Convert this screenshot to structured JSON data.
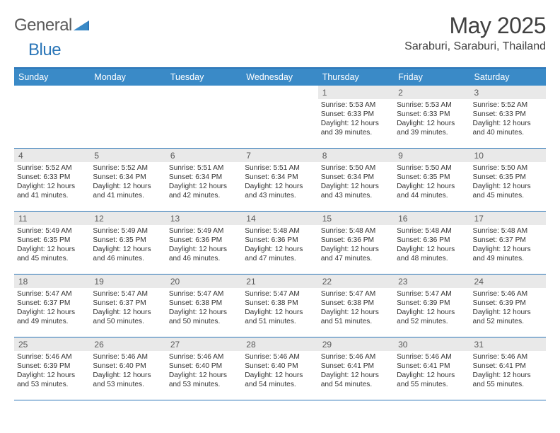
{
  "logo": {
    "word1": "General",
    "word2": "Blue"
  },
  "header": {
    "title": "May 2025",
    "location": "Saraburi, Saraburi, Thailand"
  },
  "colors": {
    "accent": "#2b76b8",
    "header_bar": "#3a8ac7",
    "daynum_bg": "#e9e9e9",
    "text_dark": "#404040",
    "text_body": "#343434"
  },
  "weekdays": [
    "Sunday",
    "Monday",
    "Tuesday",
    "Wednesday",
    "Thursday",
    "Friday",
    "Saturday"
  ],
  "weeks": [
    [
      {
        "n": "",
        "lines": []
      },
      {
        "n": "",
        "lines": []
      },
      {
        "n": "",
        "lines": []
      },
      {
        "n": "",
        "lines": []
      },
      {
        "n": "1",
        "lines": [
          "Sunrise: 5:53 AM",
          "Sunset: 6:33 PM",
          "Daylight: 12 hours",
          "and 39 minutes."
        ]
      },
      {
        "n": "2",
        "lines": [
          "Sunrise: 5:53 AM",
          "Sunset: 6:33 PM",
          "Daylight: 12 hours",
          "and 39 minutes."
        ]
      },
      {
        "n": "3",
        "lines": [
          "Sunrise: 5:52 AM",
          "Sunset: 6:33 PM",
          "Daylight: 12 hours",
          "and 40 minutes."
        ]
      }
    ],
    [
      {
        "n": "4",
        "lines": [
          "Sunrise: 5:52 AM",
          "Sunset: 6:33 PM",
          "Daylight: 12 hours",
          "and 41 minutes."
        ]
      },
      {
        "n": "5",
        "lines": [
          "Sunrise: 5:52 AM",
          "Sunset: 6:34 PM",
          "Daylight: 12 hours",
          "and 41 minutes."
        ]
      },
      {
        "n": "6",
        "lines": [
          "Sunrise: 5:51 AM",
          "Sunset: 6:34 PM",
          "Daylight: 12 hours",
          "and 42 minutes."
        ]
      },
      {
        "n": "7",
        "lines": [
          "Sunrise: 5:51 AM",
          "Sunset: 6:34 PM",
          "Daylight: 12 hours",
          "and 43 minutes."
        ]
      },
      {
        "n": "8",
        "lines": [
          "Sunrise: 5:50 AM",
          "Sunset: 6:34 PM",
          "Daylight: 12 hours",
          "and 43 minutes."
        ]
      },
      {
        "n": "9",
        "lines": [
          "Sunrise: 5:50 AM",
          "Sunset: 6:35 PM",
          "Daylight: 12 hours",
          "and 44 minutes."
        ]
      },
      {
        "n": "10",
        "lines": [
          "Sunrise: 5:50 AM",
          "Sunset: 6:35 PM",
          "Daylight: 12 hours",
          "and 45 minutes."
        ]
      }
    ],
    [
      {
        "n": "11",
        "lines": [
          "Sunrise: 5:49 AM",
          "Sunset: 6:35 PM",
          "Daylight: 12 hours",
          "and 45 minutes."
        ]
      },
      {
        "n": "12",
        "lines": [
          "Sunrise: 5:49 AM",
          "Sunset: 6:35 PM",
          "Daylight: 12 hours",
          "and 46 minutes."
        ]
      },
      {
        "n": "13",
        "lines": [
          "Sunrise: 5:49 AM",
          "Sunset: 6:36 PM",
          "Daylight: 12 hours",
          "and 46 minutes."
        ]
      },
      {
        "n": "14",
        "lines": [
          "Sunrise: 5:48 AM",
          "Sunset: 6:36 PM",
          "Daylight: 12 hours",
          "and 47 minutes."
        ]
      },
      {
        "n": "15",
        "lines": [
          "Sunrise: 5:48 AM",
          "Sunset: 6:36 PM",
          "Daylight: 12 hours",
          "and 47 minutes."
        ]
      },
      {
        "n": "16",
        "lines": [
          "Sunrise: 5:48 AM",
          "Sunset: 6:36 PM",
          "Daylight: 12 hours",
          "and 48 minutes."
        ]
      },
      {
        "n": "17",
        "lines": [
          "Sunrise: 5:48 AM",
          "Sunset: 6:37 PM",
          "Daylight: 12 hours",
          "and 49 minutes."
        ]
      }
    ],
    [
      {
        "n": "18",
        "lines": [
          "Sunrise: 5:47 AM",
          "Sunset: 6:37 PM",
          "Daylight: 12 hours",
          "and 49 minutes."
        ]
      },
      {
        "n": "19",
        "lines": [
          "Sunrise: 5:47 AM",
          "Sunset: 6:37 PM",
          "Daylight: 12 hours",
          "and 50 minutes."
        ]
      },
      {
        "n": "20",
        "lines": [
          "Sunrise: 5:47 AM",
          "Sunset: 6:38 PM",
          "Daylight: 12 hours",
          "and 50 minutes."
        ]
      },
      {
        "n": "21",
        "lines": [
          "Sunrise: 5:47 AM",
          "Sunset: 6:38 PM",
          "Daylight: 12 hours",
          "and 51 minutes."
        ]
      },
      {
        "n": "22",
        "lines": [
          "Sunrise: 5:47 AM",
          "Sunset: 6:38 PM",
          "Daylight: 12 hours",
          "and 51 minutes."
        ]
      },
      {
        "n": "23",
        "lines": [
          "Sunrise: 5:47 AM",
          "Sunset: 6:39 PM",
          "Daylight: 12 hours",
          "and 52 minutes."
        ]
      },
      {
        "n": "24",
        "lines": [
          "Sunrise: 5:46 AM",
          "Sunset: 6:39 PM",
          "Daylight: 12 hours",
          "and 52 minutes."
        ]
      }
    ],
    [
      {
        "n": "25",
        "lines": [
          "Sunrise: 5:46 AM",
          "Sunset: 6:39 PM",
          "Daylight: 12 hours",
          "and 53 minutes."
        ]
      },
      {
        "n": "26",
        "lines": [
          "Sunrise: 5:46 AM",
          "Sunset: 6:40 PM",
          "Daylight: 12 hours",
          "and 53 minutes."
        ]
      },
      {
        "n": "27",
        "lines": [
          "Sunrise: 5:46 AM",
          "Sunset: 6:40 PM",
          "Daylight: 12 hours",
          "and 53 minutes."
        ]
      },
      {
        "n": "28",
        "lines": [
          "Sunrise: 5:46 AM",
          "Sunset: 6:40 PM",
          "Daylight: 12 hours",
          "and 54 minutes."
        ]
      },
      {
        "n": "29",
        "lines": [
          "Sunrise: 5:46 AM",
          "Sunset: 6:41 PM",
          "Daylight: 12 hours",
          "and 54 minutes."
        ]
      },
      {
        "n": "30",
        "lines": [
          "Sunrise: 5:46 AM",
          "Sunset: 6:41 PM",
          "Daylight: 12 hours",
          "and 55 minutes."
        ]
      },
      {
        "n": "31",
        "lines": [
          "Sunrise: 5:46 AM",
          "Sunset: 6:41 PM",
          "Daylight: 12 hours",
          "and 55 minutes."
        ]
      }
    ]
  ]
}
